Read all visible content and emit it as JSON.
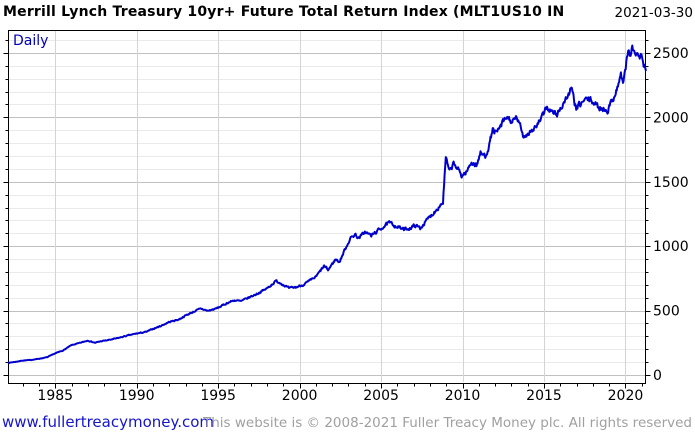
{
  "header": {
    "title": "Merrill Lynch Treasury 10yr+ Future Total Return Index (MLT1US10 IN",
    "date": "2021-03-30"
  },
  "chart": {
    "period_label": "Daily",
    "colors": {
      "line": "#0000cc",
      "period_label_blue": "#0000bb",
      "grid_minor": "#eaeaea",
      "grid_major": "#c0c0c0",
      "grid_vertical": "#d4d4d4",
      "axis": "#000000",
      "link_blue": "#1515cc",
      "footer_gray": "#a0a0a0"
    }
  },
  "footer": {
    "link": "www.fullertreacymoney.com",
    "copyright": "This website is © 2008-2021 Fuller Treacy Money plc. All rights reserved"
  },
  "chart_data": {
    "type": "line",
    "title": "Merrill Lynch Treasury 10yr+ Future Total Return Index (MLT1US10 IN",
    "period": "Daily",
    "xlabel": "",
    "ylabel": "",
    "legend": "none",
    "grid": true,
    "xlim": [
      1982.1,
      2021.2
    ],
    "ylim": [
      -62,
      2678
    ],
    "x_ticks": [
      1985,
      1990,
      1995,
      2000,
      2005,
      2010,
      2015,
      2020
    ],
    "y_ticks": [
      0,
      500,
      1000,
      1500,
      2000,
      2500
    ],
    "y_minor_step": 100,
    "x_minor_step": 1,
    "series": [
      {
        "name": "MLT1US10 IN",
        "points": [
          [
            1982.15,
            95
          ],
          [
            1982.6,
            103
          ],
          [
            1983.0,
            112
          ],
          [
            1983.5,
            117
          ],
          [
            1984.0,
            126
          ],
          [
            1984.5,
            138
          ],
          [
            1985.0,
            168
          ],
          [
            1985.5,
            192
          ],
          [
            1986.0,
            232
          ],
          [
            1986.5,
            248
          ],
          [
            1987.0,
            268
          ],
          [
            1987.45,
            250
          ],
          [
            1987.8,
            262
          ],
          [
            1988.3,
            272
          ],
          [
            1988.8,
            285
          ],
          [
            1989.3,
            302
          ],
          [
            1990.0,
            322
          ],
          [
            1990.6,
            335
          ],
          [
            1991.0,
            358
          ],
          [
            1991.5,
            382
          ],
          [
            1992.0,
            412
          ],
          [
            1992.6,
            432
          ],
          [
            1993.0,
            462
          ],
          [
            1993.6,
            498
          ],
          [
            1993.95,
            515
          ],
          [
            1994.35,
            498
          ],
          [
            1994.8,
            512
          ],
          [
            1995.2,
            535
          ],
          [
            1995.6,
            562
          ],
          [
            1996.0,
            580
          ],
          [
            1996.4,
            572
          ],
          [
            1997.0,
            608
          ],
          [
            1997.5,
            638
          ],
          [
            1998.0,
            672
          ],
          [
            1998.55,
            730
          ],
          [
            1998.9,
            710
          ],
          [
            1999.35,
            672
          ],
          [
            1999.8,
            682
          ],
          [
            2000.2,
            700
          ],
          [
            2000.6,
            728
          ],
          [
            2001.0,
            762
          ],
          [
            2001.5,
            845
          ],
          [
            2001.75,
            815
          ],
          [
            2002.2,
            898
          ],
          [
            2002.45,
            878
          ],
          [
            2002.8,
            980
          ],
          [
            2003.1,
            1058
          ],
          [
            2003.4,
            1092
          ],
          [
            2003.65,
            1062
          ],
          [
            2004.0,
            1112
          ],
          [
            2004.4,
            1082
          ],
          [
            2004.75,
            1115
          ],
          [
            2005.1,
            1148
          ],
          [
            2005.5,
            1180
          ],
          [
            2005.9,
            1158
          ],
          [
            2006.4,
            1128
          ],
          [
            2006.8,
            1142
          ],
          [
            2007.1,
            1162
          ],
          [
            2007.4,
            1140
          ],
          [
            2007.9,
            1215
          ],
          [
            2008.3,
            1270
          ],
          [
            2008.6,
            1315
          ],
          [
            2008.8,
            1340
          ],
          [
            2008.97,
            1685
          ],
          [
            2009.2,
            1575
          ],
          [
            2009.45,
            1640
          ],
          [
            2009.7,
            1600
          ],
          [
            2009.95,
            1548
          ],
          [
            2010.25,
            1575
          ],
          [
            2010.55,
            1655
          ],
          [
            2010.85,
            1625
          ],
          [
            2011.1,
            1720
          ],
          [
            2011.4,
            1700
          ],
          [
            2011.65,
            1790
          ],
          [
            2011.85,
            1905
          ],
          [
            2012.1,
            1875
          ],
          [
            2012.45,
            1955
          ],
          [
            2012.75,
            2000
          ],
          [
            2013.05,
            1960
          ],
          [
            2013.35,
            1995
          ],
          [
            2013.75,
            1852
          ],
          [
            2014.1,
            1885
          ],
          [
            2014.5,
            1925
          ],
          [
            2014.9,
            2000
          ],
          [
            2015.15,
            2085
          ],
          [
            2015.5,
            2038
          ],
          [
            2015.8,
            2022
          ],
          [
            2016.1,
            2090
          ],
          [
            2016.4,
            2155
          ],
          [
            2016.68,
            2222
          ],
          [
            2016.98,
            2062
          ],
          [
            2017.3,
            2112
          ],
          [
            2017.65,
            2142
          ],
          [
            2017.95,
            2128
          ],
          [
            2018.3,
            2082
          ],
          [
            2018.65,
            2065
          ],
          [
            2018.9,
            2058
          ],
          [
            2019.2,
            2132
          ],
          [
            2019.5,
            2232
          ],
          [
            2019.72,
            2330
          ],
          [
            2019.88,
            2272
          ],
          [
            2020.05,
            2420
          ],
          [
            2020.17,
            2510
          ],
          [
            2020.28,
            2488
          ],
          [
            2020.42,
            2530
          ],
          [
            2020.6,
            2498
          ],
          [
            2020.8,
            2462
          ],
          [
            2020.95,
            2475
          ],
          [
            2021.05,
            2420
          ],
          [
            2021.15,
            2390
          ],
          [
            2021.25,
            2365
          ]
        ]
      }
    ]
  }
}
